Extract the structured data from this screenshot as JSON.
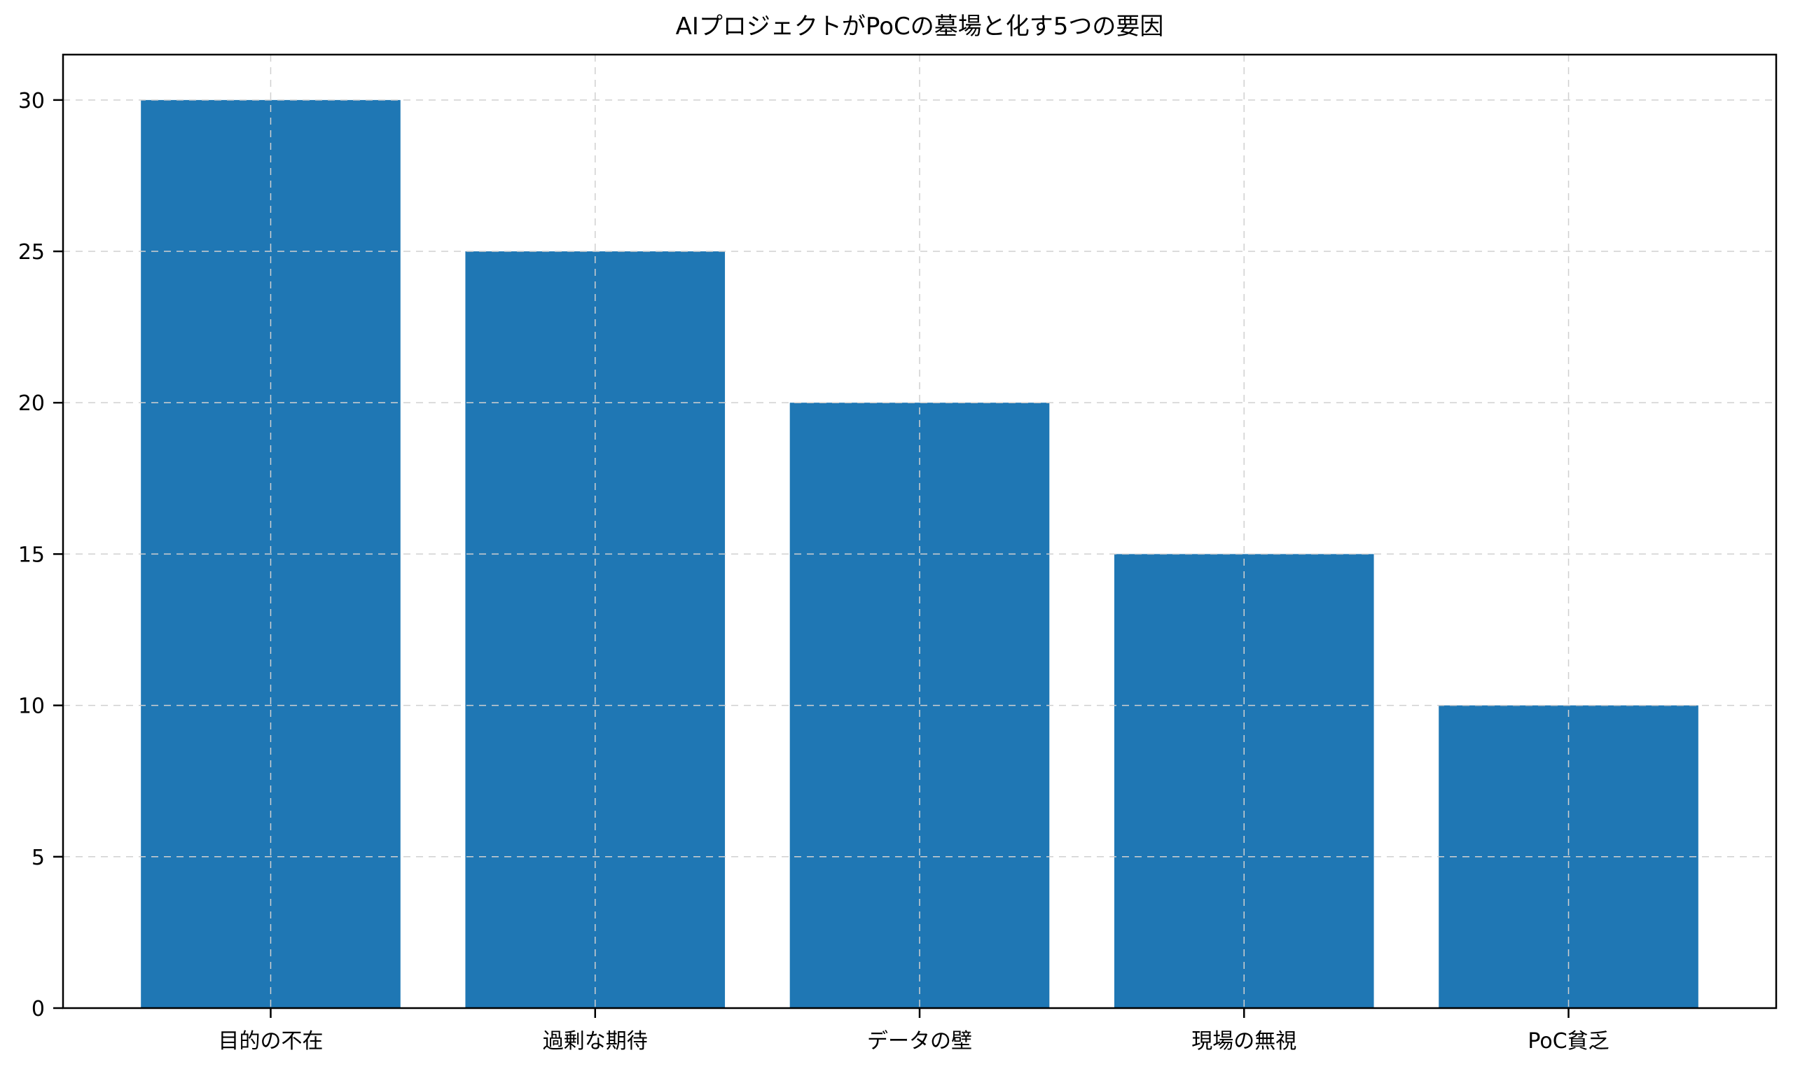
{
  "figure": {
    "title": "AIプロジェクトがPoCの墓場と化す5つの要因"
  },
  "chart_data": {
    "type": "bar",
    "title": "AIプロジェクトがPoCの墓場と化す5つの要因",
    "categories": [
      "目的の不在",
      "過剰な期待",
      "データの壁",
      "現場の無視",
      "PoC貧乏"
    ],
    "values": [
      30,
      25,
      20,
      15,
      10
    ],
    "xlabel": "",
    "ylabel": "",
    "ylim": [
      0,
      31.5
    ],
    "yticks": [
      0,
      5,
      10,
      15,
      20,
      25,
      30
    ],
    "grid": true,
    "grid_style": "dashed",
    "legend": false,
    "colors": {
      "bar": "#1f77b4",
      "grid": "#d0d0d0",
      "axis": "#000000",
      "text": "#000000",
      "background": "#ffffff"
    }
  }
}
